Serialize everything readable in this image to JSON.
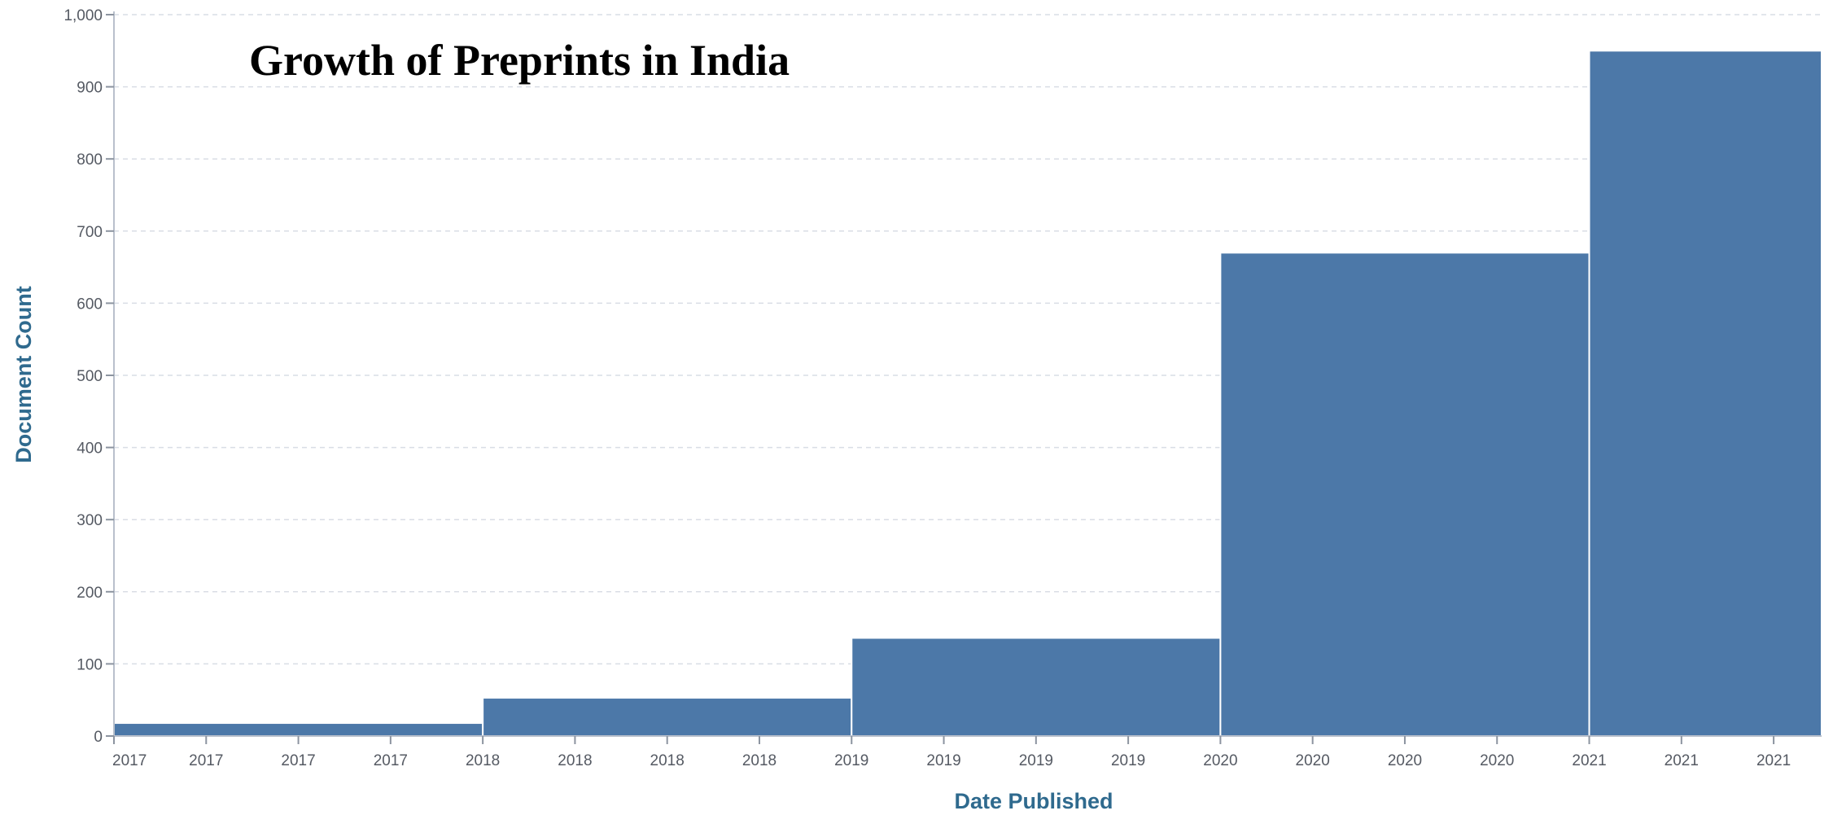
{
  "chart_data": {
    "type": "bar",
    "title": "Growth of Preprints in India",
    "xlabel": "Date Published",
    "ylabel": "Document Count",
    "ylim": [
      0,
      1000
    ],
    "y_ticks": [
      0,
      100,
      200,
      300,
      400,
      500,
      600,
      700,
      800,
      900,
      1000
    ],
    "y_tick_labels": [
      "0",
      "100",
      "200",
      "300",
      "400",
      "500",
      "600",
      "700",
      "800",
      "900",
      "1,000"
    ],
    "x_domain": [
      2017,
      2021.63
    ],
    "x_ticks": [
      2017.0,
      2017.25,
      2017.5,
      2017.75,
      2018.0,
      2018.25,
      2018.5,
      2018.75,
      2019.0,
      2019.25,
      2019.5,
      2019.75,
      2020.0,
      2020.25,
      2020.5,
      2020.75,
      2021.0,
      2021.25,
      2021.5
    ],
    "x_tick_labels": [
      "2017",
      "2017",
      "2017",
      "2017",
      "2018",
      "2018",
      "2018",
      "2018",
      "2019",
      "2019",
      "2019",
      "2019",
      "2020",
      "2020",
      "2020",
      "2020",
      "2021",
      "2021",
      "2021"
    ],
    "categories": [
      "2017",
      "2018",
      "2019",
      "2020",
      "2021"
    ],
    "bins": [
      {
        "start": 2017,
        "end": 2018,
        "value": 18
      },
      {
        "start": 2018,
        "end": 2019,
        "value": 53
      },
      {
        "start": 2019,
        "end": 2020,
        "value": 136
      },
      {
        "start": 2020,
        "end": 2021,
        "value": 670
      },
      {
        "start": 2021,
        "end": 2021.63,
        "value": 950
      }
    ],
    "grid": true,
    "bar_color": "#4c78a8"
  }
}
